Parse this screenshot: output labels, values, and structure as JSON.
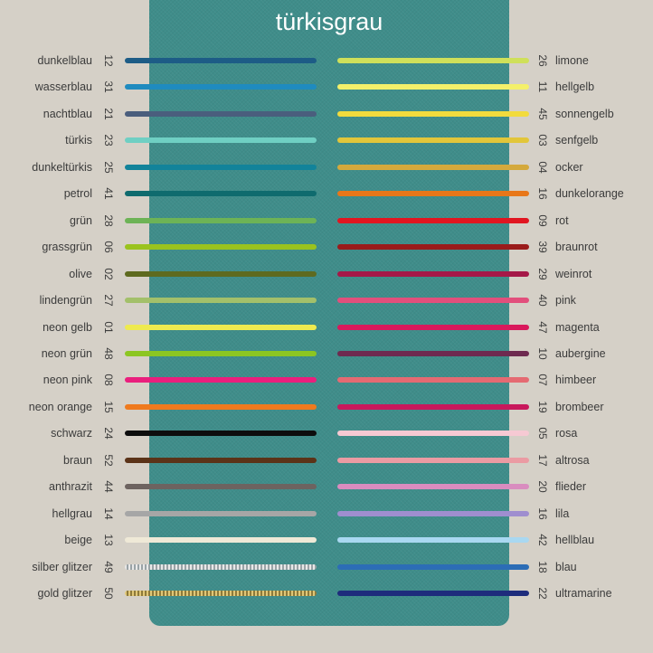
{
  "title": "türkisgrau",
  "left": [
    {
      "name": "dunkelblau",
      "num": "12",
      "color": "#1d5c86"
    },
    {
      "name": "wasserblau",
      "num": "31",
      "color": "#1f8bbf"
    },
    {
      "name": "nachtblau",
      "num": "21",
      "color": "#4a5e7d"
    },
    {
      "name": "türkis",
      "num": "23",
      "color": "#6fcfc3"
    },
    {
      "name": "dunkeltürkis",
      "num": "25",
      "color": "#12839a"
    },
    {
      "name": "petrol",
      "num": "41",
      "color": "#0f6b6e"
    },
    {
      "name": "grün",
      "num": "28",
      "color": "#6db356"
    },
    {
      "name": "grassgrün",
      "num": "06",
      "color": "#9ac31e"
    },
    {
      "name": "olive",
      "num": "02",
      "color": "#5e6a1f"
    },
    {
      "name": "lindengrün",
      "num": "27",
      "color": "#a3c06a"
    },
    {
      "name": "neon gelb",
      "num": "01",
      "color": "#eeea4f"
    },
    {
      "name": "neon grün",
      "num": "48",
      "color": "#8cc622"
    },
    {
      "name": "neon pink",
      "num": "08",
      "color": "#ea1f7d"
    },
    {
      "name": "neon orange",
      "num": "15",
      "color": "#ef7a1e"
    },
    {
      "name": "schwarz",
      "num": "24",
      "color": "#0d0d0d"
    },
    {
      "name": "braun",
      "num": "52",
      "color": "#5b3318"
    },
    {
      "name": "anthrazit",
      "num": "44",
      "color": "#6d6360"
    },
    {
      "name": "hellgrau",
      "num": "14",
      "color": "#a6a6a6"
    },
    {
      "name": "beige",
      "num": "13",
      "color": "#efe9d7"
    },
    {
      "name": "silber glitzer",
      "num": "49",
      "color": "#c9cdcf"
    },
    {
      "name": "gold glitzer",
      "num": "50",
      "color": "#c9b060"
    }
  ],
  "right": [
    {
      "name": "limone",
      "num": "26",
      "color": "#cfe05a"
    },
    {
      "name": "hellgelb",
      "num": "11",
      "color": "#f4f06a"
    },
    {
      "name": "sonnengelb",
      "num": "45",
      "color": "#f2db3d"
    },
    {
      "name": "senfgelb",
      "num": "03",
      "color": "#e2c63a"
    },
    {
      "name": "ocker",
      "num": "04",
      "color": "#d4a93c"
    },
    {
      "name": "dunkelorange",
      "num": "16",
      "color": "#e87719"
    },
    {
      "name": "rot",
      "num": "09",
      "color": "#e11621"
    },
    {
      "name": "braunrot",
      "num": "39",
      "color": "#9a1b1b"
    },
    {
      "name": "weinrot",
      "num": "29",
      "color": "#a51848"
    },
    {
      "name": "pink",
      "num": "40",
      "color": "#e24f7c"
    },
    {
      "name": "magenta",
      "num": "47",
      "color": "#d9195c"
    },
    {
      "name": "aubergine",
      "num": "10",
      "color": "#6e2a50"
    },
    {
      "name": "himbeer",
      "num": "07",
      "color": "#e56a72"
    },
    {
      "name": "brombeer",
      "num": "19",
      "color": "#c8185c"
    },
    {
      "name": "rosa",
      "num": "05",
      "color": "#f6c9d3"
    },
    {
      "name": "altrosa",
      "num": "17",
      "color": "#eb9ba3"
    },
    {
      "name": "flieder",
      "num": "20",
      "color": "#d98cbf"
    },
    {
      "name": "lila",
      "num": "16",
      "color": "#9f8ecf"
    },
    {
      "name": "hellblau",
      "num": "42",
      "color": "#a9d8f1"
    },
    {
      "name": "blau",
      "num": "18",
      "color": "#2c6db6"
    },
    {
      "name": "ultramarine",
      "num": "22",
      "color": "#1e2c7c"
    }
  ]
}
